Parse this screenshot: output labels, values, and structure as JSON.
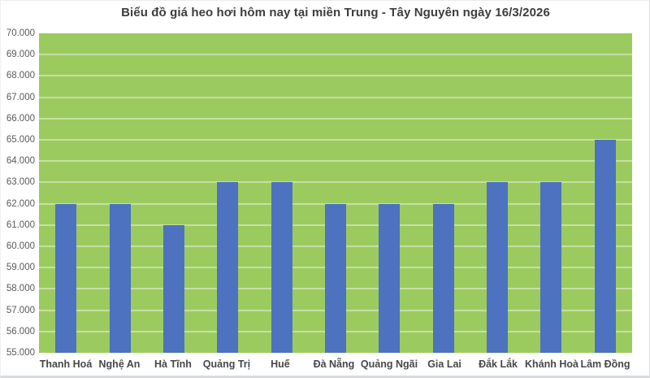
{
  "chart_data": {
    "type": "bar",
    "title": "Biểu đồ giá heo hơi hôm nay tại miền Trung - Tây Nguyên ngày 16/3/2026",
    "categories": [
      "Thanh Hoá",
      "Nghệ An",
      "Hà Tĩnh",
      "Quảng Trị",
      "Huế",
      "Đà Nẵng",
      "Quảng Ngãi",
      "Gia Lai",
      "Đắk Lắk",
      "Khánh Hoà",
      "Lâm Đồng"
    ],
    "values": [
      62000,
      62000,
      61000,
      63000,
      63000,
      62000,
      62000,
      62000,
      63000,
      63000,
      65000
    ],
    "xlabel": "",
    "ylabel": "",
    "ylim": [
      55000,
      70000
    ],
    "ytick_step": 1000,
    "ytick_labels_top_to_bottom": [
      "70.000",
      "69.000",
      "68.000",
      "67.000",
      "66.000",
      "65.000",
      "64.000",
      "63.000",
      "62.000",
      "61.000",
      "60.000",
      "59.000",
      "58.000",
      "57.000",
      "56.000",
      "55.000"
    ],
    "grid": true,
    "legend_position": "none",
    "colors": {
      "bar": "#4C72C0",
      "plot_background": "#9BCB5E",
      "gridline": "#C7E0A2",
      "title_text": "#3D3D3D",
      "axis_text": "#595959",
      "page_background": "#FFFFFF"
    }
  }
}
